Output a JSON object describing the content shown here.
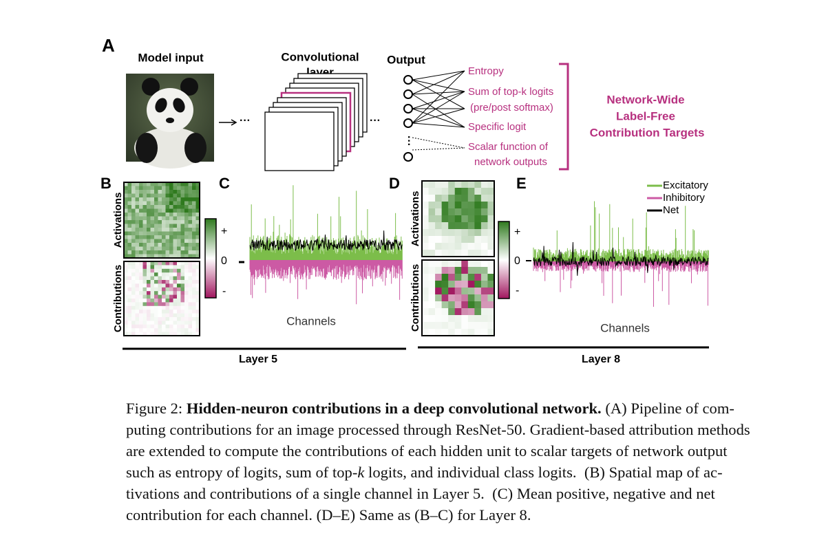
{
  "panel_a": {
    "label": "A",
    "model_input": "Model input",
    "conv_layer": [
      "Convolutional",
      "layer"
    ],
    "output": "Output",
    "targets": [
      "Entropy",
      "Sum of top-k logits",
      "(pre/post softmax)",
      "Specific logit",
      "Scalar function of",
      "network outputs"
    ],
    "heading": [
      "Network-Wide",
      "Label-Free",
      "Contribution Targets"
    ]
  },
  "panel_labels": {
    "b": "B",
    "c": "C",
    "d": "D",
    "e": "E"
  },
  "map_labels": {
    "activations": "Activations",
    "contributions": "Contributions"
  },
  "colorbar": [
    "+",
    "0",
    "-"
  ],
  "x_label": "Channels",
  "legend": [
    {
      "name": "Excitatory",
      "color": "#7cbd4a"
    },
    {
      "name": "Inhibitory",
      "color": "#cc5aa4"
    },
    {
      "name": "Net",
      "color": "#000000"
    }
  ],
  "layers": [
    "Layer 5",
    "Layer 8"
  ],
  "caption": {
    "lines": [
      [
        {
          "text": "Figure 2: "
        },
        {
          "text": "Hidden-neuron contributions in a deep convolutional network.",
          "bold": true
        },
        {
          "text": " (A) Pipeline of com-"
        }
      ],
      [
        {
          "text": "puting contributions for an image processed through ResNet-50. Gradient-based attribution methods"
        }
      ],
      [
        {
          "text": "are extended to compute the contributions of each hidden unit to scalar targets of network output"
        }
      ],
      [
        {
          "text": "such as entropy of logits, sum of top-"
        },
        {
          "text": "k",
          "italic": true
        },
        {
          "text": " logits, and individual class logits.  (B) Spatial map of ac-"
        }
      ],
      [
        {
          "text": "tivations and contributions of a single channel in Layer 5.  (C) Mean positive, negative and net"
        }
      ],
      [
        {
          "text": "contribution for each channel. (D–E) Same as (B–C) for Layer 8."
        }
      ]
    ]
  }
}
